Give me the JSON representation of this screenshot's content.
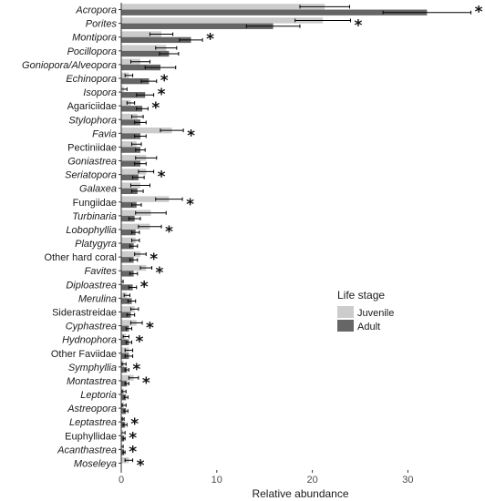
{
  "chart_data": {
    "type": "bar",
    "orientation": "horizontal",
    "xlabel": "Relative abundance",
    "ylabel": "",
    "xlim": [
      0,
      37.5
    ],
    "xticks": [
      0,
      10,
      20,
      30
    ],
    "grid": false,
    "legend": {
      "title": "Life stage",
      "placement": "center-right",
      "entries": [
        {
          "name": "Juvenile",
          "color": "#cccccc"
        },
        {
          "name": "Adult",
          "color": "#666666"
        }
      ]
    },
    "significance_marker": "*",
    "categories": [
      {
        "label": "Acropora",
        "italic": true,
        "significant": true
      },
      {
        "label": "Porites",
        "italic": true,
        "significant": true
      },
      {
        "label": "Montipora",
        "italic": true,
        "significant": true
      },
      {
        "label": "Pocillopora",
        "italic": true,
        "significant": false
      },
      {
        "label": "Goniopora/Alveopora",
        "italic": true,
        "significant": false
      },
      {
        "label": "Echinopora",
        "italic": true,
        "significant": true
      },
      {
        "label": "Isopora",
        "italic": true,
        "significant": true
      },
      {
        "label": "Agariciidae",
        "italic": false,
        "significant": true
      },
      {
        "label": "Stylophora",
        "italic": true,
        "significant": false
      },
      {
        "label": "Favia",
        "italic": true,
        "significant": true
      },
      {
        "label": "Pectiniidae",
        "italic": false,
        "significant": false
      },
      {
        "label": "Goniastrea",
        "italic": true,
        "significant": false
      },
      {
        "label": "Seriatopora",
        "italic": true,
        "significant": true
      },
      {
        "label": "Galaxea",
        "italic": true,
        "significant": false
      },
      {
        "label": "Fungiidae",
        "italic": false,
        "significant": true
      },
      {
        "label": "Turbinaria",
        "italic": true,
        "significant": false
      },
      {
        "label": "Lobophyllia",
        "italic": true,
        "significant": true
      },
      {
        "label": "Platygyra",
        "italic": true,
        "significant": false
      },
      {
        "label": "Other hard coral",
        "italic": false,
        "significant": true
      },
      {
        "label": "Favites",
        "italic": true,
        "significant": true
      },
      {
        "label": "Diploastrea",
        "italic": true,
        "significant": true
      },
      {
        "label": "Merulina",
        "italic": true,
        "significant": false
      },
      {
        "label": "Siderastreidae",
        "italic": false,
        "significant": false
      },
      {
        "label": "Cyphastrea",
        "italic": true,
        "significant": true
      },
      {
        "label": "Hydnophora",
        "italic": true,
        "significant": true
      },
      {
        "label": "Other Faviidae",
        "italic": false,
        "significant": false
      },
      {
        "label": "Symphyllia",
        "italic": true,
        "significant": true
      },
      {
        "label": "Montastrea",
        "italic": true,
        "significant": true
      },
      {
        "label": "Leptoria",
        "italic": true,
        "significant": false
      },
      {
        "label": "Astreopora",
        "italic": true,
        "significant": false
      },
      {
        "label": "Leptastrea",
        "italic": true,
        "significant": true
      },
      {
        "label": "Euphyllidae",
        "italic": false,
        "significant": true
      },
      {
        "label": "Acanthastrea",
        "italic": true,
        "significant": true
      },
      {
        "label": "Moseleya",
        "italic": true,
        "significant": true
      }
    ],
    "series": [
      {
        "name": "Juvenile",
        "color": "#cccccc",
        "values": [
          21.3,
          21.1,
          4.2,
          4.7,
          2.0,
          0.8,
          0.3,
          1.0,
          1.7,
          5.3,
          1.6,
          2.6,
          2.6,
          2.0,
          5.0,
          3.1,
          3.0,
          1.5,
          2.0,
          2.6,
          0.1,
          0.6,
          1.4,
          1.6,
          0.5,
          0.8,
          0.3,
          1.3,
          0.3,
          0.3,
          0.2,
          0.2,
          0.1,
          0.8
        ],
        "errors": [
          2.6,
          2.9,
          1.2,
          1.1,
          1.0,
          0.4,
          0.3,
          0.4,
          0.6,
          1.2,
          0.5,
          1.1,
          0.8,
          1.0,
          1.4,
          1.6,
          1.2,
          0.4,
          0.6,
          0.6,
          0.1,
          0.3,
          0.4,
          0.6,
          0.3,
          0.4,
          0.2,
          0.5,
          0.2,
          0.2,
          0.1,
          0.2,
          0.1,
          0.4
        ]
      },
      {
        "name": "Adult",
        "color": "#666666",
        "values": [
          32.0,
          15.9,
          7.3,
          5.0,
          4.1,
          2.9,
          2.5,
          2.2,
          2.0,
          2.0,
          2.0,
          2.0,
          1.8,
          1.7,
          1.6,
          1.4,
          1.5,
          1.3,
          1.3,
          1.3,
          1.2,
          1.1,
          1.0,
          0.8,
          0.8,
          0.8,
          0.6,
          0.6,
          0.5,
          0.5,
          0.4,
          0.3,
          0.3,
          0.0
        ],
        "errors": [
          4.6,
          2.8,
          1.2,
          1.0,
          1.6,
          0.8,
          0.9,
          0.6,
          0.6,
          0.6,
          0.5,
          0.6,
          0.6,
          0.6,
          0.5,
          0.6,
          0.4,
          0.4,
          0.4,
          0.4,
          0.4,
          0.4,
          0.4,
          0.3,
          0.3,
          0.4,
          0.2,
          0.2,
          0.2,
          0.2,
          0.2,
          0.1,
          0.1,
          0.0
        ]
      }
    ]
  }
}
